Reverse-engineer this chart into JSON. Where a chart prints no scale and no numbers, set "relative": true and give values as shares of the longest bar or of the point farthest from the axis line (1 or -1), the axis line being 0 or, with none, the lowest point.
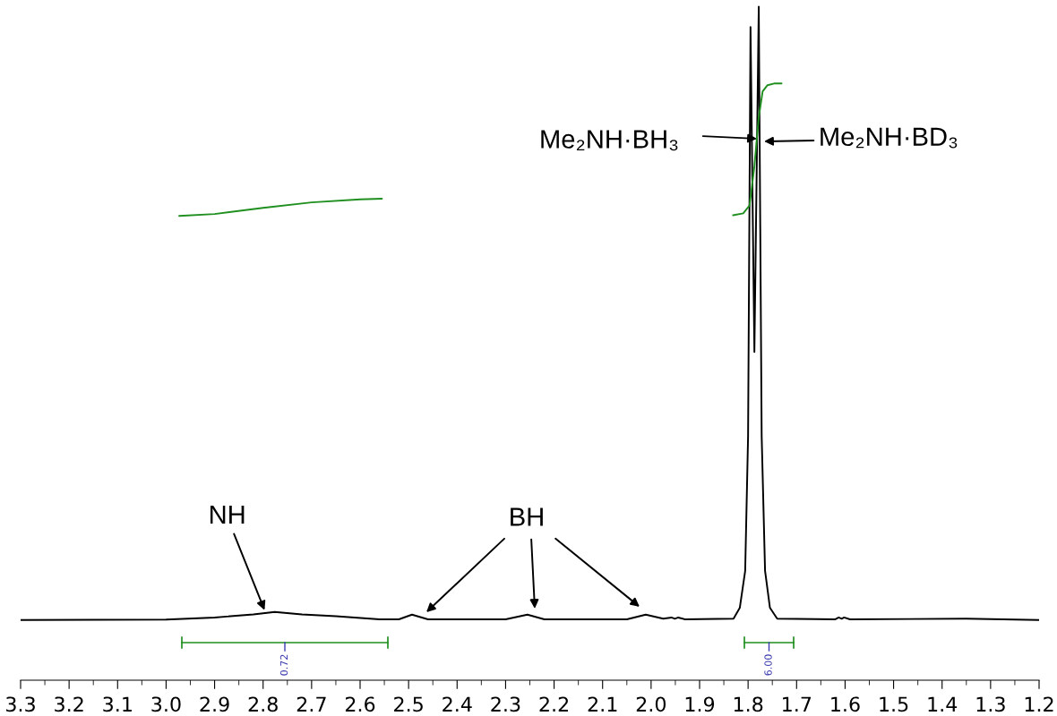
{
  "chart_data": {
    "type": "line",
    "relative": true,
    "xlim": [
      3.3,
      1.2
    ],
    "xticks": [
      3.3,
      3.2,
      3.1,
      {
        "value": 3,
        "label": "3.0"
      },
      2.9,
      2.8,
      2.7,
      2.6,
      2.5,
      2.4,
      2.3,
      2.2,
      2.1,
      {
        "value": 2,
        "label": "2.0"
      },
      1.9,
      1.8,
      1.7,
      1.6,
      1.5,
      1.4,
      1.3,
      1.2
    ],
    "series": [
      {
        "color": "#000000",
        "x": [
          3.3,
          3.0,
          2.9,
          2.82,
          2.776,
          2.72,
          2.65,
          2.56,
          2.52,
          2.493,
          2.46,
          2.3,
          2.255,
          2.22,
          2.05,
          2.011,
          1.975,
          1.958,
          1.951,
          1.944,
          1.93,
          1.83,
          1.817,
          1.806,
          1.8,
          1.795,
          1.787,
          1.778,
          1.772,
          1.765,
          1.755,
          1.74,
          1.62,
          1.613,
          1.607,
          1.602,
          1.59,
          1.35,
          1.2
        ],
        "values": [
          0.0895,
          0.0901,
          0.0931,
          0.0977,
          0.1013,
          0.0977,
          0.095,
          0.0904,
          0.0904,
          0.0973,
          0.0904,
          0.0904,
          0.0973,
          0.0904,
          0.0904,
          0.0973,
          0.0913,
          0.0931,
          0.0913,
          0.0931,
          0.0904,
          0.0913,
          0.1077,
          0.1623,
          0.3627,
          0.97,
          0.4874,
          1.0,
          0.3627,
          0.1623,
          0.1077,
          0.0913,
          0.0904,
          0.0931,
          0.0913,
          0.0931,
          0.0904,
          0.0913,
          0.0895
        ]
      },
      {
        "color": "#1f8f1f",
        "x": [
          2.973,
          2.9,
          2.8,
          2.7,
          2.6,
          2.555
        ],
        "values": [
          0.6895,
          0.6922,
          0.7014,
          0.7095,
          0.7141,
          0.715
        ]
      },
      {
        "color": "#1f8f1f",
        "x": [
          1.831,
          1.81,
          1.797,
          1.787,
          1.778,
          1.77,
          1.76,
          1.745,
          1.731
        ],
        "values": [
          0.6904,
          0.6932,
          0.705,
          0.7633,
          0.8361,
          0.8744,
          0.8835,
          0.8862,
          0.8862
        ]
      }
    ],
    "annotations": [
      {
        "text": "NH",
        "x": 2.797,
        "y": 0.104
      },
      "BH",
      "Me₂NH·BH₃",
      {
        "text": "Me₂NH·BD₃",
        "x": 1.767,
        "y": 0.8
      },
      "0.72",
      "6.00"
    ]
  }
}
